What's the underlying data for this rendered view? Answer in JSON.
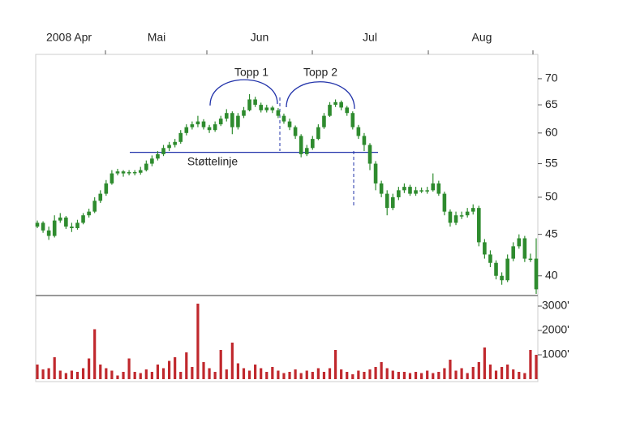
{
  "chart_data": {
    "type": "candlestick",
    "x_labels": [
      "2008 Apr",
      "Mai",
      "Jun",
      "Jul",
      "Aug"
    ],
    "log_scale": true,
    "ylim": [
      38,
      75
    ],
    "yticks": [
      40,
      45,
      50,
      55,
      60,
      65,
      70
    ],
    "color": "#2e8b2e",
    "open": [
      46.0,
      46.5,
      45.5,
      44.8,
      46.8,
      47.2,
      46.0,
      45.8,
      46.5,
      47.5,
      48.0,
      49.5,
      50.5,
      52.0,
      53.5,
      53.8,
      53.5,
      53.7,
      53.6,
      54.0,
      55.0,
      55.8,
      56.5,
      57.5,
      58.0,
      58.5,
      60.0,
      61.0,
      61.5,
      62.0,
      61.0,
      60.5,
      61.5,
      62.5,
      63.5,
      61.0,
      63.0,
      64.0,
      66.0,
      65.0,
      64.0,
      64.5,
      64.0,
      63.0,
      62.0,
      61.0,
      59.5,
      56.5,
      57.5,
      59.0,
      61.0,
      63.0,
      65.0,
      65.5,
      64.5,
      63.5,
      61.0,
      59.5,
      58.0,
      55.0,
      52.0,
      50.5,
      48.5,
      50.0,
      51.0,
      51.5,
      50.5,
      51.0,
      51.0,
      51.0,
      52.0,
      50.5,
      48.0,
      46.5,
      47.5,
      47.5,
      48.0,
      48.5,
      44.0,
      42.5,
      41.5,
      40.0,
      39.5,
      42.0,
      43.5,
      44.5,
      42.0,
      42.0
    ],
    "high": [
      46.8,
      46.7,
      46.0,
      47.5,
      47.8,
      47.4,
      46.5,
      46.9,
      47.8,
      48.4,
      50.0,
      51.0,
      52.5,
      54.0,
      54.2,
      54.0,
      54.0,
      54.0,
      54.5,
      55.5,
      56.3,
      57.0,
      58.0,
      58.5,
      59.0,
      60.5,
      61.5,
      62.0,
      63.0,
      62.4,
      61.4,
      62.0,
      63.0,
      64.2,
      63.8,
      63.5,
      64.6,
      67.0,
      66.5,
      65.4,
      65.0,
      64.8,
      64.4,
      63.4,
      62.5,
      61.3,
      59.8,
      58.0,
      59.5,
      61.5,
      63.5,
      65.5,
      66.0,
      65.8,
      64.8,
      63.8,
      61.4,
      60.0,
      58.3,
      55.4,
      52.4,
      51.0,
      50.5,
      51.5,
      52.0,
      51.8,
      51.5,
      51.4,
      51.5,
      53.5,
      52.4,
      50.8,
      48.3,
      48.0,
      48.0,
      48.5,
      49.0,
      48.8,
      44.4,
      43.0,
      41.8,
      40.4,
      42.5,
      44.0,
      45.0,
      44.8,
      42.6,
      44.5
    ],
    "low": [
      45.8,
      45.2,
      44.3,
      44.6,
      46.5,
      45.7,
      45.3,
      45.6,
      46.3,
      47.2,
      47.8,
      49.2,
      50.2,
      51.8,
      53.2,
      53.0,
      53.2,
      53.2,
      53.3,
      53.8,
      54.6,
      55.5,
      56.2,
      57.0,
      57.6,
      58.2,
      59.6,
      60.6,
      61.0,
      60.6,
      60.0,
      60.2,
      61.2,
      62.0,
      59.8,
      60.6,
      62.6,
      63.8,
      64.6,
      63.6,
      63.6,
      63.5,
      62.6,
      61.6,
      60.5,
      59.0,
      56.0,
      56.2,
      57.2,
      58.8,
      60.7,
      62.8,
      64.6,
      64.0,
      63.0,
      60.6,
      59.0,
      57.0,
      54.0,
      51.0,
      50.0,
      47.5,
      48.2,
      49.6,
      50.6,
      50.2,
      50.2,
      50.6,
      50.5,
      50.8,
      50.2,
      47.5,
      46.0,
      46.2,
      47.0,
      47.2,
      47.6,
      43.5,
      42.0,
      41.0,
      39.6,
      39.0,
      39.3,
      41.7,
      43.2,
      41.6,
      41.6,
      38.0
    ],
    "close": [
      46.5,
      45.5,
      44.8,
      46.8,
      47.2,
      46.0,
      45.8,
      46.5,
      47.5,
      48.0,
      49.5,
      50.5,
      52.0,
      53.5,
      53.8,
      53.5,
      53.7,
      53.6,
      54.0,
      55.0,
      55.8,
      56.5,
      57.5,
      58.0,
      58.5,
      60.0,
      61.0,
      61.5,
      62.0,
      61.0,
      60.5,
      61.5,
      62.5,
      63.5,
      61.0,
      63.0,
      64.0,
      66.0,
      65.0,
      64.0,
      64.5,
      64.0,
      63.0,
      62.0,
      61.0,
      59.5,
      56.5,
      57.5,
      59.0,
      61.0,
      63.0,
      65.0,
      65.5,
      64.5,
      63.5,
      61.0,
      59.5,
      58.0,
      55.0,
      52.0,
      50.5,
      48.5,
      50.0,
      51.0,
      51.5,
      50.5,
      51.0,
      51.0,
      51.0,
      52.0,
      50.5,
      48.0,
      46.5,
      47.5,
      47.5,
      48.0,
      48.5,
      44.0,
      42.5,
      41.5,
      40.0,
      39.5,
      42.0,
      43.5,
      44.5,
      42.0,
      42.0,
      38.5
    ],
    "volume": {
      "color": "#c0282d",
      "ylim": [
        0,
        3400
      ],
      "yticks": [
        {
          "value": 1000,
          "label": "1000'"
        },
        {
          "value": 2000,
          "label": "2000'"
        },
        {
          "value": 3000,
          "label": "3000'"
        }
      ],
      "values": [
        600,
        400,
        450,
        900,
        350,
        250,
        350,
        300,
        450,
        850,
        2050,
        600,
        450,
        350,
        150,
        300,
        850,
        300,
        250,
        400,
        300,
        600,
        450,
        750,
        900,
        300,
        1100,
        500,
        3100,
        700,
        450,
        300,
        1200,
        400,
        1500,
        650,
        450,
        350,
        600,
        450,
        300,
        500,
        350,
        250,
        300,
        400,
        250,
        350,
        300,
        450,
        300,
        450,
        1200,
        400,
        300,
        200,
        350,
        300,
        400,
        500,
        700,
        450,
        350,
        300,
        300,
        250,
        300,
        250,
        350,
        250,
        300,
        450,
        800,
        350,
        450,
        250,
        500,
        700,
        1300,
        600,
        350,
        500,
        600,
        400,
        300,
        250,
        1200,
        1000
      ]
    },
    "support_level": 56.8,
    "annotations": {
      "top1": "Topp 1",
      "top2": "Topp 2",
      "support": "Støttelinje"
    }
  }
}
